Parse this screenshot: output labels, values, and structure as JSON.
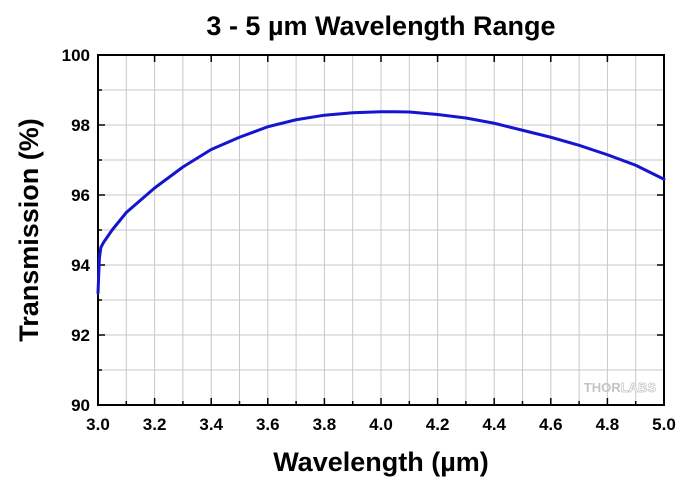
{
  "chart_data": {
    "type": "line",
    "title": "3 - 5 µm Wavelength Range",
    "xlabel": "Wavelength (µm)",
    "ylabel": "Transmission (%)",
    "xlim": [
      3.0,
      5.0
    ],
    "ylim": [
      90,
      100
    ],
    "x_ticks": [
      "3.0",
      "3.2",
      "3.4",
      "3.6",
      "3.8",
      "4.0",
      "4.2",
      "4.4",
      "4.6",
      "4.8",
      "5.0"
    ],
    "y_ticks": [
      "90",
      "92",
      "94",
      "96",
      "98",
      "100"
    ],
    "x_tick_values": [
      3.0,
      3.2,
      3.4,
      3.6,
      3.8,
      4.0,
      4.2,
      4.4,
      4.6,
      4.8,
      5.0
    ],
    "y_tick_values": [
      90,
      92,
      94,
      96,
      98,
      100
    ],
    "grid": true,
    "series": [
      {
        "color": "#1515d0",
        "x": [
          3.0,
          3.005,
          3.01,
          3.02,
          3.05,
          3.1,
          3.2,
          3.3,
          3.4,
          3.5,
          3.6,
          3.7,
          3.8,
          3.9,
          4.0,
          4.05,
          4.1,
          4.2,
          4.3,
          4.4,
          4.5,
          4.6,
          4.7,
          4.8,
          4.9,
          5.0
        ],
        "y": [
          93.2,
          94.2,
          94.5,
          94.65,
          95.0,
          95.5,
          96.2,
          96.8,
          97.3,
          97.65,
          97.95,
          98.15,
          98.28,
          98.35,
          98.38,
          98.38,
          98.37,
          98.3,
          98.2,
          98.05,
          97.85,
          97.65,
          97.42,
          97.15,
          96.85,
          96.45
        ]
      }
    ]
  },
  "watermark": {
    "text_a": "THOR",
    "text_b": "LABS"
  }
}
